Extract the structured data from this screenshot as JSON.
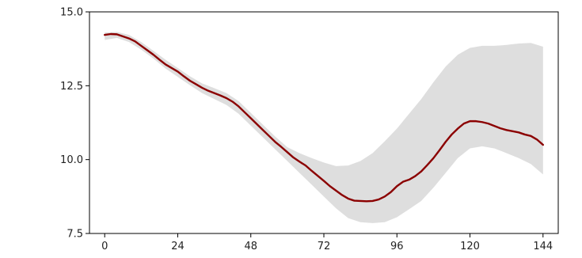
{
  "chart_data": {
    "type": "line",
    "x_ticks": [
      "0",
      "24",
      "48",
      "72",
      "96",
      "120",
      "144"
    ],
    "y_ticks": [
      "7.5",
      "10.0",
      "12.5",
      "15.0"
    ],
    "xlim": [
      -5,
      149
    ],
    "ylim": [
      7.5,
      15.0
    ],
    "grid": false,
    "series": [
      {
        "color": "#8b0000",
        "x": [
          0,
          2,
          4,
          6,
          8,
          10,
          12,
          14,
          16,
          18,
          20,
          22,
          24,
          26,
          28,
          30,
          32,
          34,
          36,
          38,
          40,
          42,
          44,
          46,
          48,
          50,
          52,
          54,
          56,
          58,
          60,
          62,
          64,
          66,
          68,
          70,
          72,
          74,
          76,
          78,
          80,
          82,
          84,
          86,
          88,
          90,
          92,
          94,
          96,
          98,
          100,
          102,
          104,
          106,
          108,
          110,
          112,
          114,
          116,
          118,
          120,
          122,
          124,
          126,
          128,
          130,
          132,
          134,
          136,
          138,
          140,
          142,
          144
        ],
        "y": [
          14.22,
          14.25,
          14.24,
          14.17,
          14.1,
          14.0,
          13.85,
          13.7,
          13.55,
          13.38,
          13.22,
          13.1,
          12.98,
          12.82,
          12.67,
          12.55,
          12.43,
          12.33,
          12.25,
          12.17,
          12.08,
          11.96,
          11.8,
          11.6,
          11.4,
          11.2,
          11.0,
          10.8,
          10.6,
          10.43,
          10.25,
          10.07,
          9.93,
          9.8,
          9.62,
          9.45,
          9.28,
          9.1,
          8.95,
          8.8,
          8.68,
          8.61,
          8.6,
          8.59,
          8.6,
          8.65,
          8.75,
          8.9,
          9.1,
          9.25,
          9.32,
          9.44,
          9.6,
          9.82,
          10.05,
          10.32,
          10.6,
          10.85,
          11.05,
          11.22,
          11.3,
          11.3,
          11.27,
          11.22,
          11.14,
          11.06,
          11.0,
          10.96,
          10.92,
          10.85,
          10.8,
          10.68,
          10.5
        ]
      }
    ],
    "band": {
      "color": "#dedede",
      "x": [
        0,
        4,
        8,
        12,
        16,
        20,
        24,
        28,
        32,
        36,
        40,
        44,
        48,
        52,
        56,
        60,
        64,
        68,
        72,
        76,
        80,
        84,
        88,
        92,
        96,
        100,
        104,
        108,
        112,
        116,
        120,
        124,
        128,
        132,
        136,
        140,
        144
      ],
      "lower": [
        14.05,
        14.12,
        13.98,
        13.72,
        13.42,
        13.08,
        12.8,
        12.52,
        12.25,
        12.05,
        11.85,
        11.55,
        11.15,
        10.75,
        10.35,
        9.95,
        9.55,
        9.15,
        8.75,
        8.35,
        8.02,
        7.88,
        7.85,
        7.88,
        8.05,
        8.32,
        8.6,
        9.05,
        9.55,
        10.05,
        10.38,
        10.45,
        10.38,
        10.22,
        10.05,
        9.85,
        9.5
      ],
      "upper": [
        14.3,
        14.32,
        14.22,
        13.98,
        13.68,
        13.38,
        13.1,
        12.82,
        12.58,
        12.42,
        12.25,
        11.98,
        11.58,
        11.18,
        10.78,
        10.42,
        10.22,
        10.05,
        9.9,
        9.78,
        9.8,
        9.95,
        10.22,
        10.62,
        11.05,
        11.55,
        12.05,
        12.62,
        13.15,
        13.55,
        13.78,
        13.85,
        13.85,
        13.88,
        13.93,
        13.95,
        13.82
      ]
    }
  }
}
